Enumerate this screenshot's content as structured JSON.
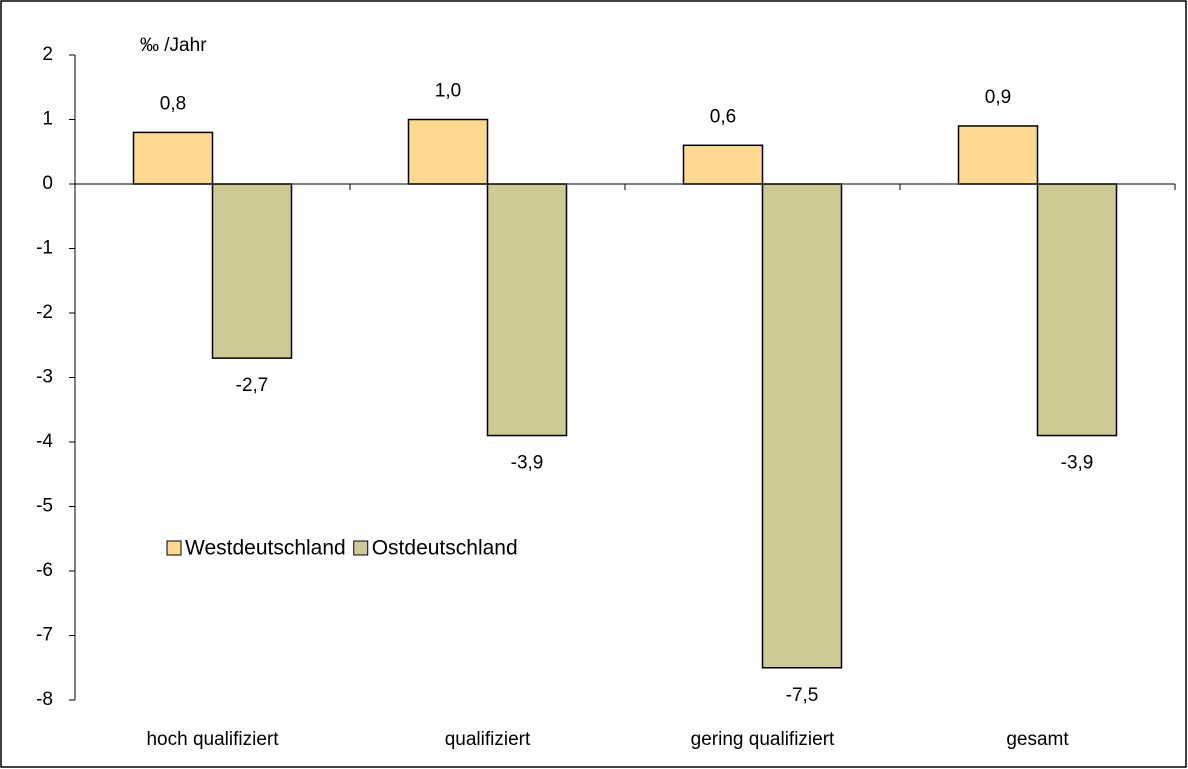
{
  "chart_data": {
    "type": "bar",
    "y_label": "‰ /Jahr",
    "categories": [
      "hoch qualifiziert",
      "qualifiziert",
      "gering qualifiziert",
      "gesamt"
    ],
    "series": [
      {
        "name": "Westdeutschland",
        "color": "#ffd98f",
        "values": [
          0.8,
          1.0,
          0.6,
          0.9
        ],
        "value_labels": [
          "0,8",
          "1,0",
          "0,6",
          "0,9"
        ]
      },
      {
        "name": "Ostdeutschland",
        "color": "#cfc995",
        "values": [
          -2.7,
          -3.9,
          -7.5,
          -3.9
        ],
        "value_labels": [
          "-2,7",
          "-3,9",
          "-7,5",
          "-3,9"
        ]
      }
    ],
    "ylim": [
      -8,
      2
    ],
    "yticks": [
      -8,
      -7,
      -6,
      -5,
      -4,
      -3,
      -2,
      -1,
      0,
      1,
      2
    ],
    "grid": false,
    "legend": "left"
  }
}
